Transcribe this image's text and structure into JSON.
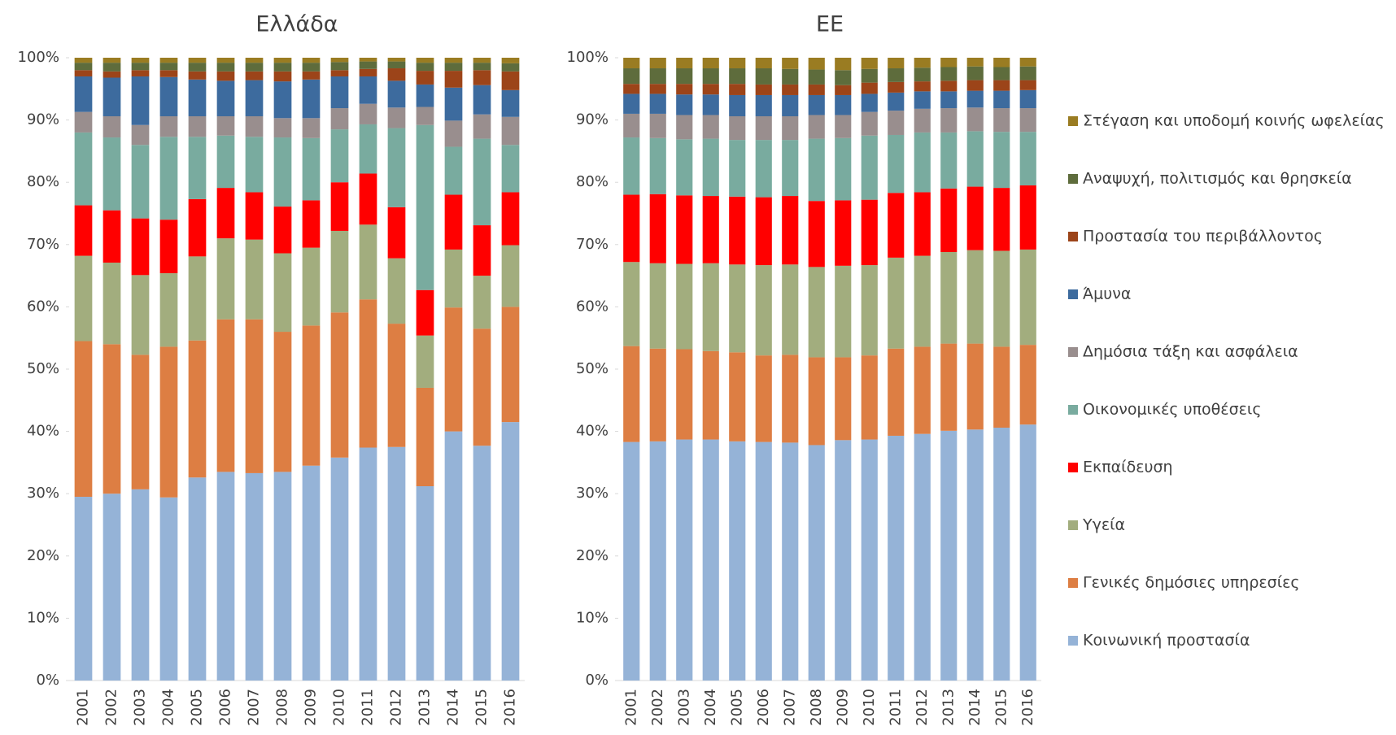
{
  "chart_data": [
    {
      "type": "stacked_bar",
      "title": "Ελλάδα",
      "categories": [
        "2001",
        "2002",
        "2003",
        "2004",
        "2005",
        "2006",
        "2007",
        "2008",
        "2009",
        "2010",
        "2011",
        "2012",
        "2013",
        "2014",
        "2015",
        "2016"
      ],
      "ylim": [
        0,
        100
      ],
      "yticks": [
        {
          "value": 0,
          "label": "0%"
        },
        {
          "value": 10,
          "label": "10%"
        },
        {
          "value": 20,
          "label": "20%"
        },
        {
          "value": 30,
          "label": "30%"
        },
        {
          "value": 40,
          "label": "40%"
        },
        {
          "value": 50,
          "label": "50%"
        },
        {
          "value": 60,
          "label": "60%"
        },
        {
          "value": 70,
          "label": "70%"
        },
        {
          "value": 80,
          "label": "80%"
        },
        {
          "value": 90,
          "label": "90%"
        },
        {
          "value": 100,
          "label": "100%"
        }
      ],
      "series": [
        {
          "color": "#95b3d7",
          "values": [
            29.5,
            30,
            30.7,
            29.4,
            32.6,
            33.5,
            33.3,
            33.5,
            34.5,
            35.8,
            37.4,
            37.5,
            31.2,
            40,
            37.7,
            41.5
          ]
        },
        {
          "color": "#dd7e43",
          "values": [
            25,
            24,
            21.6,
            24.2,
            22,
            24.5,
            24.7,
            22.5,
            22.5,
            23.3,
            23.8,
            19.8,
            15.8,
            19.9,
            18.8,
            18.5
          ]
        },
        {
          "color": "#a2ad7e",
          "values": [
            13.7,
            13.1,
            12.8,
            11.8,
            13.5,
            13,
            12.8,
            12.6,
            12.5,
            13.1,
            12,
            10.5,
            8.4,
            9.3,
            8.5,
            9.9
          ]
        },
        {
          "color": "#ff0000",
          "values": [
            8.1,
            8.4,
            9.1,
            8.6,
            9.2,
            8.1,
            7.6,
            7.5,
            7.6,
            7.8,
            8.2,
            8.2,
            7.3,
            8.8,
            8.1,
            8.5
          ]
        },
        {
          "color": "#79ab9f",
          "values": [
            11.7,
            11.7,
            11.8,
            13.3,
            10,
            8.4,
            8.9,
            11.1,
            10,
            8.5,
            7.9,
            12.7,
            26.5,
            7.7,
            13.9,
            7.6
          ]
        },
        {
          "color": "#998e8e",
          "values": [
            3.3,
            3.4,
            3.2,
            3.3,
            3.3,
            3.1,
            3.3,
            3.1,
            3.2,
            3.4,
            3.3,
            3.3,
            2.9,
            4.2,
            3.9,
            4.5
          ]
        },
        {
          "color": "#3d6b9e",
          "values": [
            5.7,
            6.2,
            7.8,
            6.3,
            5.9,
            5.7,
            5.8,
            5.9,
            6.2,
            5.1,
            4.4,
            4.3,
            3.6,
            5.3,
            4.7,
            4.3
          ]
        },
        {
          "color": "#9c4419",
          "values": [
            1,
            1,
            1,
            1.1,
            1.3,
            1.5,
            1.4,
            1.6,
            1.3,
            1,
            1.2,
            2,
            2.2,
            2.7,
            2.4,
            3
          ]
        },
        {
          "color": "#5e6c3c",
          "values": [
            1.2,
            1.4,
            1.2,
            1.2,
            1.4,
            1.4,
            1.4,
            1.4,
            1.4,
            1.3,
            1.2,
            1.1,
            1.3,
            1.3,
            1.2,
            1.3
          ]
        },
        {
          "color": "#9a7c22",
          "values": [
            0.8,
            0.8,
            0.8,
            0.8,
            0.8,
            0.8,
            0.8,
            0.8,
            0.8,
            0.7,
            0.6,
            0.6,
            0.8,
            0.8,
            0.8,
            0.9
          ]
        }
      ]
    },
    {
      "type": "stacked_bar",
      "title": "ΕΕ",
      "legend": "right",
      "categories": [
        "2001",
        "2002",
        "2003",
        "2004",
        "2005",
        "2006",
        "2007",
        "2008",
        "2009",
        "2010",
        "2011",
        "2012",
        "2013",
        "2014",
        "2015",
        "2016"
      ],
      "ylim": [
        0,
        100
      ],
      "yticks": [
        {
          "value": 0,
          "label": "0%"
        },
        {
          "value": 10,
          "label": "10%"
        },
        {
          "value": 20,
          "label": "20%"
        },
        {
          "value": 30,
          "label": "30%"
        },
        {
          "value": 40,
          "label": "40%"
        },
        {
          "value": 50,
          "label": "50%"
        },
        {
          "value": 60,
          "label": "60%"
        },
        {
          "value": 70,
          "label": "70%"
        },
        {
          "value": 80,
          "label": "80%"
        },
        {
          "value": 90,
          "label": "90%"
        },
        {
          "value": 100,
          "label": "100%"
        }
      ],
      "series": [
        {
          "name": "Κοινωνική προστασία",
          "color": "#95b3d7",
          "values": [
            38.3,
            38.4,
            38.7,
            38.7,
            38.4,
            38.3,
            38.2,
            37.8,
            38.6,
            38.7,
            39.3,
            39.6,
            40.1,
            40.3,
            40.6,
            41.1
          ]
        },
        {
          "name": "Γενικές δημόσιες υπηρεσίες",
          "color": "#dd7e43",
          "values": [
            15.4,
            14.9,
            14.5,
            14.2,
            14.3,
            13.9,
            14.1,
            14.1,
            13.3,
            13.5,
            14,
            14,
            14,
            13.8,
            13,
            12.8
          ]
        },
        {
          "name": "Υγεία",
          "color": "#a2ad7e",
          "values": [
            13.5,
            13.7,
            13.7,
            14.1,
            14.1,
            14.5,
            14.5,
            14.5,
            14.7,
            14.5,
            14.6,
            14.6,
            14.7,
            15,
            15.4,
            15.3
          ]
        },
        {
          "name": "Εκπαίδευση",
          "color": "#ff0000",
          "values": [
            10.8,
            11.1,
            11,
            10.8,
            10.9,
            10.9,
            11,
            10.6,
            10.5,
            10.5,
            10.4,
            10.2,
            10.2,
            10.2,
            10.1,
            10.3
          ]
        },
        {
          "name": "Οικονομικές υποθέσεις",
          "color": "#79ab9f",
          "values": [
            9.2,
            9,
            9,
            9.2,
            9.1,
            9.2,
            9,
            10,
            10,
            10.3,
            9.3,
            9.6,
            9,
            8.9,
            9,
            8.6
          ]
        },
        {
          "name": "Δημόσια τάξη και ασφάλεια",
          "color": "#998e8e",
          "values": [
            3.8,
            3.9,
            3.9,
            3.8,
            3.8,
            3.8,
            3.8,
            3.8,
            3.7,
            3.8,
            3.9,
            3.8,
            3.9,
            3.8,
            3.8,
            3.8
          ]
        },
        {
          "name": "Άμυνα",
          "color": "#3d6b9e",
          "values": [
            3.2,
            3.2,
            3.3,
            3.3,
            3.4,
            3.4,
            3.4,
            3.2,
            3.2,
            2.9,
            2.9,
            2.8,
            2.7,
            2.7,
            2.8,
            2.9
          ]
        },
        {
          "name": "Προστασία του περιβάλλοντος",
          "color": "#9c4419",
          "values": [
            1.6,
            1.6,
            1.7,
            1.7,
            1.8,
            1.7,
            1.7,
            1.7,
            1.6,
            1.8,
            1.7,
            1.6,
            1.7,
            1.7,
            1.7,
            1.6
          ]
        },
        {
          "name": "Αναψυχή, πολιτισμός και θρησκεία",
          "color": "#5e6c3c",
          "values": [
            2.5,
            2.5,
            2.5,
            2.5,
            2.5,
            2.6,
            2.5,
            2.4,
            2.4,
            2.2,
            2.2,
            2.2,
            2.2,
            2.2,
            2.1,
            2.2
          ]
        },
        {
          "name": "Στέγαση και υποδομή κοινής ωφελείας",
          "color": "#9a7c22",
          "values": [
            1.7,
            1.7,
            1.7,
            1.7,
            1.7,
            1.7,
            1.8,
            1.9,
            2,
            1.8,
            1.7,
            1.6,
            1.5,
            1.4,
            1.5,
            1.4
          ]
        }
      ]
    }
  ]
}
